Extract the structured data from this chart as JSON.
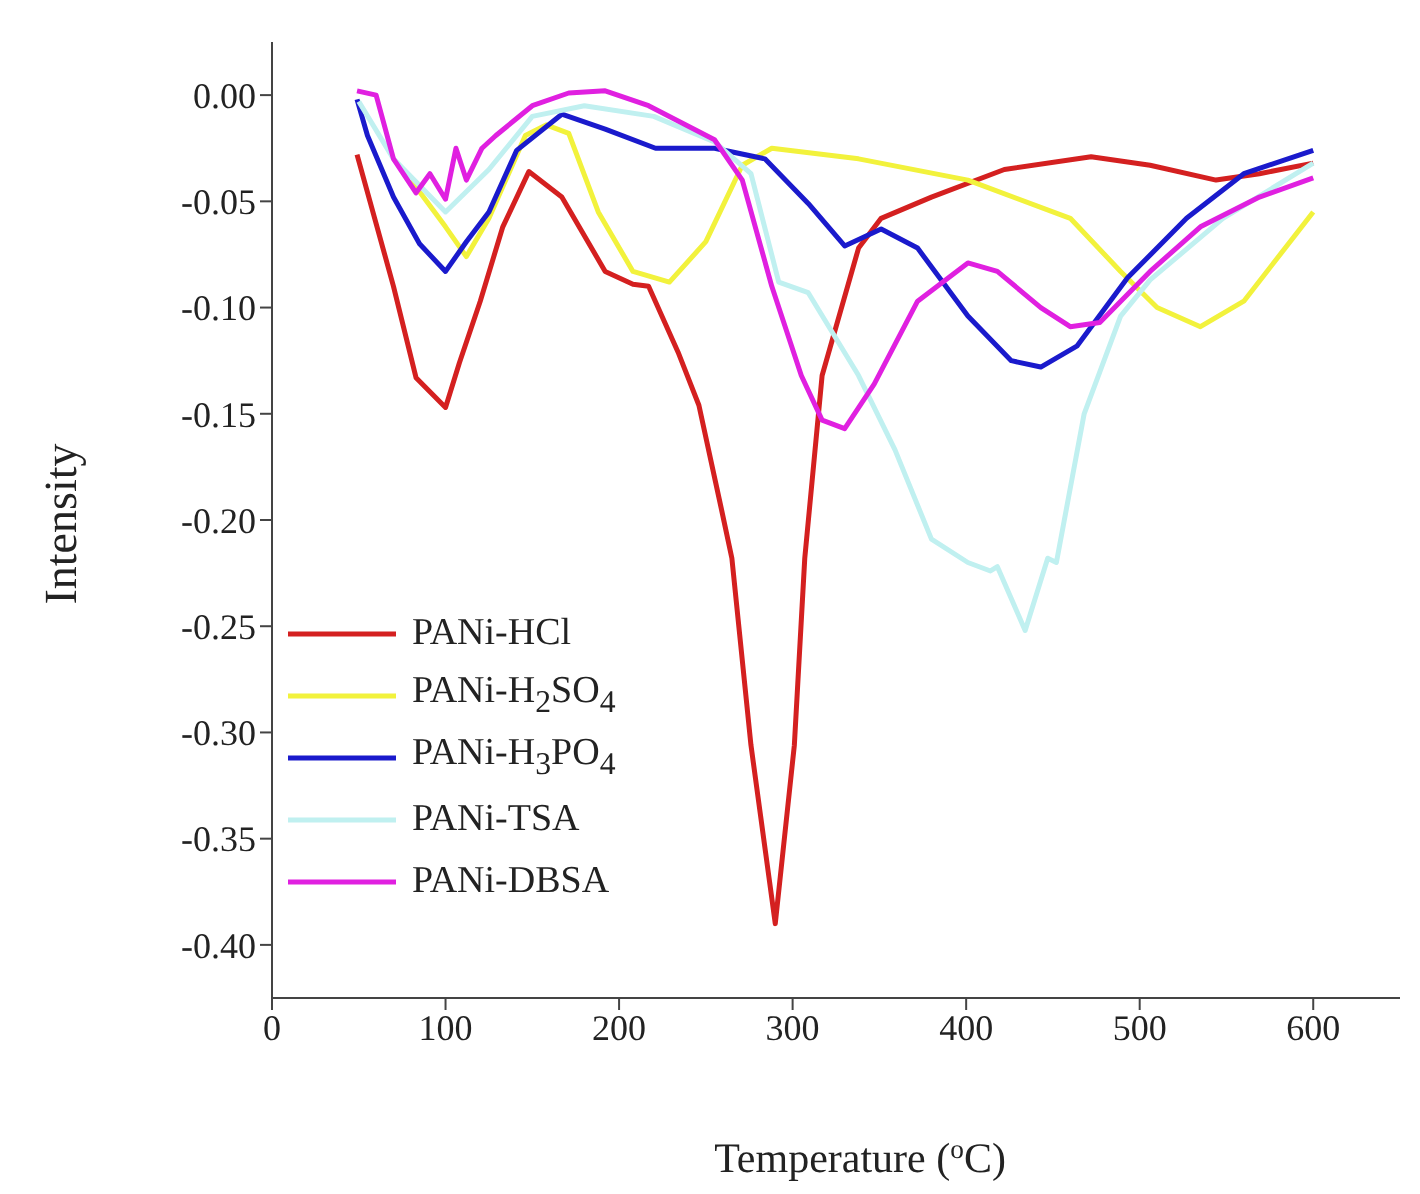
{
  "chart_data": {
    "type": "line",
    "xlabel": "Temperature ($^{o}$C)",
    "ylabel": "Intensity",
    "xlim": [
      0,
      650
    ],
    "xticks": [
      0,
      100,
      200,
      300,
      400,
      500,
      600
    ],
    "ylim": [
      -0.425,
      0.025
    ],
    "yticks": [
      {
        "value": 0,
        "label": "0.00"
      },
      {
        "value": -0.05,
        "label": "-0.05"
      },
      {
        "value": -0.1,
        "label": "-0.10"
      },
      {
        "value": -0.15,
        "label": "-0.15"
      },
      {
        "value": -0.2,
        "label": "-0.20"
      },
      {
        "value": -0.25,
        "label": "-0.25"
      },
      {
        "value": -0.3,
        "label": "-0.30"
      },
      {
        "value": -0.35,
        "label": "-0.35"
      },
      {
        "value": -0.4,
        "label": "-0.40"
      }
    ],
    "grid": false,
    "legend": "bottom left",
    "marker": "none",
    "line_style": "solid",
    "series": [
      {
        "name": "PANi-HCl",
        "color": "#d42020",
        "x": [
          49,
          70,
          83,
          100,
          108,
          120,
          133,
          148,
          167,
          192,
          208,
          217,
          234,
          246,
          259,
          265,
          276,
          290,
          301,
          307,
          317,
          338,
          351,
          380,
          422,
          472,
          506,
          544,
          569,
          600
        ],
        "values": [
          -0.028,
          -0.09,
          -0.133,
          -0.147,
          -0.126,
          -0.097,
          -0.062,
          -0.036,
          -0.048,
          -0.083,
          -0.089,
          -0.09,
          -0.121,
          -0.146,
          -0.195,
          -0.218,
          -0.306,
          -0.39,
          -0.306,
          -0.218,
          -0.132,
          -0.072,
          -0.058,
          -0.048,
          -0.035,
          -0.029,
          -0.033,
          -0.04,
          -0.037,
          -0.032
        ]
      },
      {
        "name": "PANi-H$_{2}$SO$_{4}$",
        "color": "#f2f23c",
        "x": [
          80,
          100,
          112,
          125,
          146,
          158,
          171,
          188,
          208,
          229,
          250,
          271,
          288,
          338,
          401,
          460,
          489,
          510,
          535,
          560,
          600
        ],
        "values": [
          -0.04,
          -0.062,
          -0.076,
          -0.058,
          -0.019,
          -0.014,
          -0.018,
          -0.055,
          -0.083,
          -0.088,
          -0.069,
          -0.033,
          -0.025,
          -0.03,
          -0.04,
          -0.058,
          -0.083,
          -0.1,
          -0.109,
          -0.097,
          -0.055
        ]
      },
      {
        "name": "PANi-H$_{3}$PO$_{4}$",
        "color": "#1a1acc",
        "x": [
          49,
          55,
          70,
          85,
          100,
          112,
          125,
          141,
          167,
          192,
          221,
          255,
          284,
          309,
          330,
          351,
          372,
          401,
          426,
          443,
          464,
          493,
          527,
          560,
          600
        ],
        "values": [
          -0.002,
          -0.019,
          -0.048,
          -0.07,
          -0.083,
          -0.069,
          -0.055,
          -0.026,
          -0.009,
          -0.016,
          -0.025,
          -0.025,
          -0.03,
          -0.051,
          -0.071,
          -0.063,
          -0.072,
          -0.104,
          -0.125,
          -0.128,
          -0.118,
          -0.086,
          -0.058,
          -0.037,
          -0.026
        ]
      },
      {
        "name": "PANi-TSA",
        "color": "#c0f0f0",
        "x": [
          50,
          70,
          100,
          125,
          150,
          180,
          220,
          255,
          276,
          292,
          309,
          338,
          359,
          380,
          401,
          414,
          418,
          434,
          447,
          452,
          468,
          489,
          506,
          548,
          600
        ],
        "values": [
          -0.003,
          -0.03,
          -0.055,
          -0.035,
          -0.01,
          -0.005,
          -0.01,
          -0.022,
          -0.037,
          -0.088,
          -0.093,
          -0.132,
          -0.167,
          -0.209,
          -0.22,
          -0.224,
          -0.222,
          -0.252,
          -0.218,
          -0.22,
          -0.15,
          -0.104,
          -0.087,
          -0.058,
          -0.032
        ]
      },
      {
        "name": "PANi-DBSA",
        "color": "#e020e0",
        "x": [
          49,
          60,
          70,
          83,
          91,
          100,
          106,
          112,
          121,
          129,
          150,
          171,
          192,
          217,
          255,
          271,
          288,
          305,
          317,
          330,
          347,
          372,
          401,
          418,
          443,
          460,
          477,
          506,
          535,
          569,
          600
        ],
        "values": [
          0.002,
          0,
          -0.03,
          -0.046,
          -0.037,
          -0.049,
          -0.025,
          -0.04,
          -0.025,
          -0.019,
          -0.005,
          0.001,
          0.002,
          -0.005,
          -0.021,
          -0.04,
          -0.09,
          -0.132,
          -0.153,
          -0.157,
          -0.136,
          -0.097,
          -0.079,
          -0.083,
          -0.1,
          -0.109,
          -0.107,
          -0.083,
          -0.062,
          -0.048,
          -0.039
        ]
      }
    ]
  }
}
